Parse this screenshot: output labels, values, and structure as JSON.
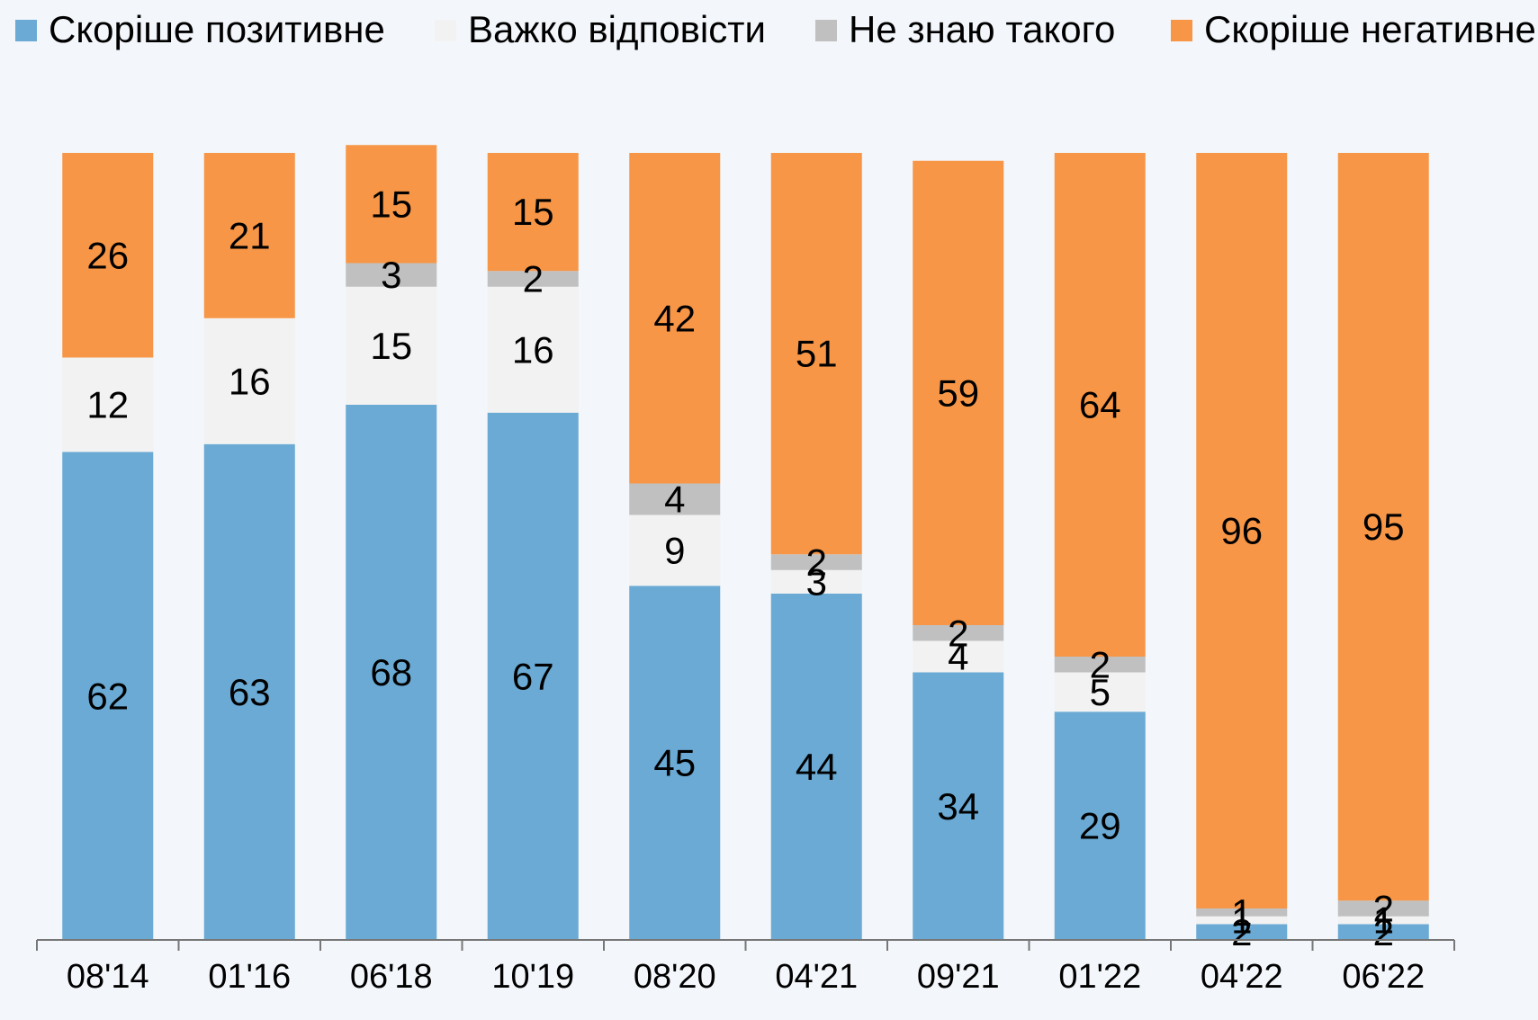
{
  "chart_data": {
    "type": "bar",
    "stacked": true,
    "categories": [
      "08'14",
      "01'16",
      "06'18",
      "10'19",
      "08'20",
      "04'21",
      "09'21",
      "01'22",
      "04'22",
      "06'22"
    ],
    "series": [
      {
        "name": "Скоріше позитивне",
        "color": "#6aaad4",
        "values": [
          62,
          63,
          68,
          67,
          45,
          44,
          34,
          29,
          2,
          2
        ]
      },
      {
        "name": "Важко відповісти",
        "color": "#f2f2f2",
        "values": [
          12,
          16,
          15,
          16,
          9,
          3,
          4,
          5,
          1,
          1
        ]
      },
      {
        "name": "Не знаю такого",
        "color": "#c0c0c0",
        "values": [
          0,
          0,
          3,
          2,
          4,
          2,
          2,
          2,
          1,
          2
        ]
      },
      {
        "name": "Скоріше негативне",
        "color": "#f79646",
        "values": [
          26,
          21,
          15,
          15,
          42,
          51,
          59,
          64,
          96,
          95
        ]
      }
    ],
    "ylim": [
      0,
      100
    ],
    "legend_position": "top",
    "grid": false,
    "title": "",
    "xlabel": "",
    "ylabel": ""
  }
}
